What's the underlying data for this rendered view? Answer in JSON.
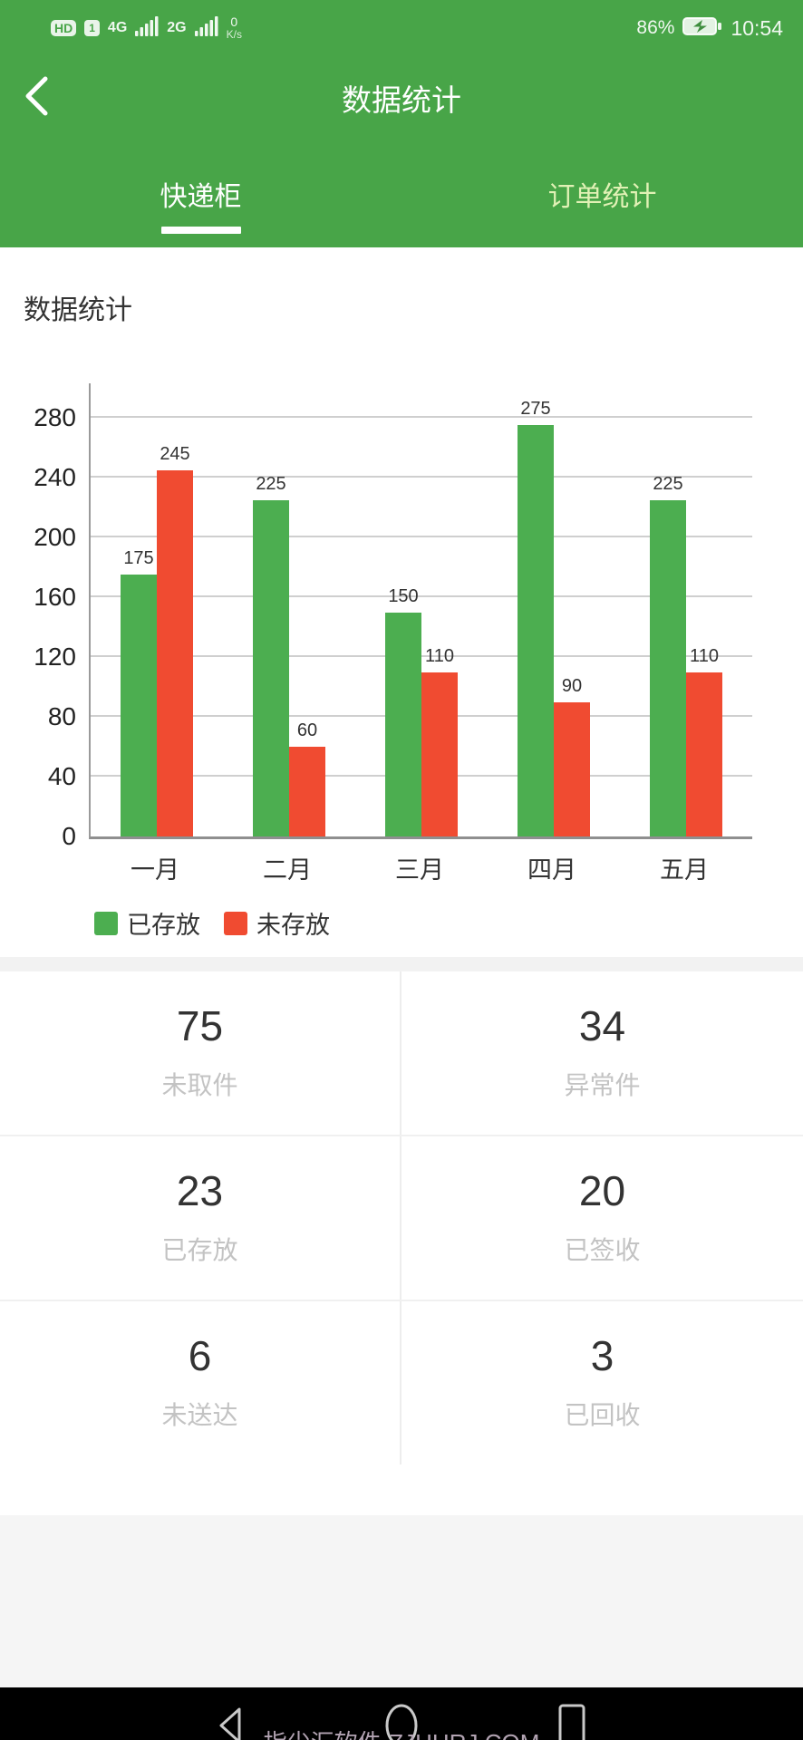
{
  "colors": {
    "header_green": "#48a548",
    "inactive_tab": "#e1f1b5",
    "bar_green": "#4cae50",
    "bar_red": "#f04b31"
  },
  "status_bar": {
    "hd_badge": "HD",
    "sim_badge": "1",
    "net1": "4G",
    "net2": "2G",
    "speed_value": "0",
    "speed_unit": "K/s",
    "battery_percent": "86%",
    "time": "10:54"
  },
  "header": {
    "title": "数据统计"
  },
  "tabs": [
    {
      "label": "快递柜",
      "active": true
    },
    {
      "label": "订单统计",
      "active": false
    }
  ],
  "section": {
    "title": "数据统计"
  },
  "chart_data": {
    "type": "bar",
    "categories": [
      "一月",
      "二月",
      "三月",
      "四月",
      "五月"
    ],
    "series": [
      {
        "name": "已存放",
        "color": "#4cae50",
        "values": [
          175,
          225,
          150,
          275,
          225
        ]
      },
      {
        "name": "未存放",
        "color": "#f04b31",
        "values": [
          245,
          60,
          110,
          90,
          110
        ]
      }
    ],
    "ylim": [
      0,
      280
    ],
    "ytick_step": 40,
    "grid": true,
    "legend_position": "bottom-left"
  },
  "stats": [
    {
      "value": "75",
      "label": "未取件"
    },
    {
      "value": "34",
      "label": "异常件"
    },
    {
      "value": "23",
      "label": "已存放"
    },
    {
      "value": "20",
      "label": "已签收"
    },
    {
      "value": "6",
      "label": "未送达"
    },
    {
      "value": "3",
      "label": "已回收"
    }
  ],
  "watermark": "指尖汇软件·ZJHHRJ.COM"
}
